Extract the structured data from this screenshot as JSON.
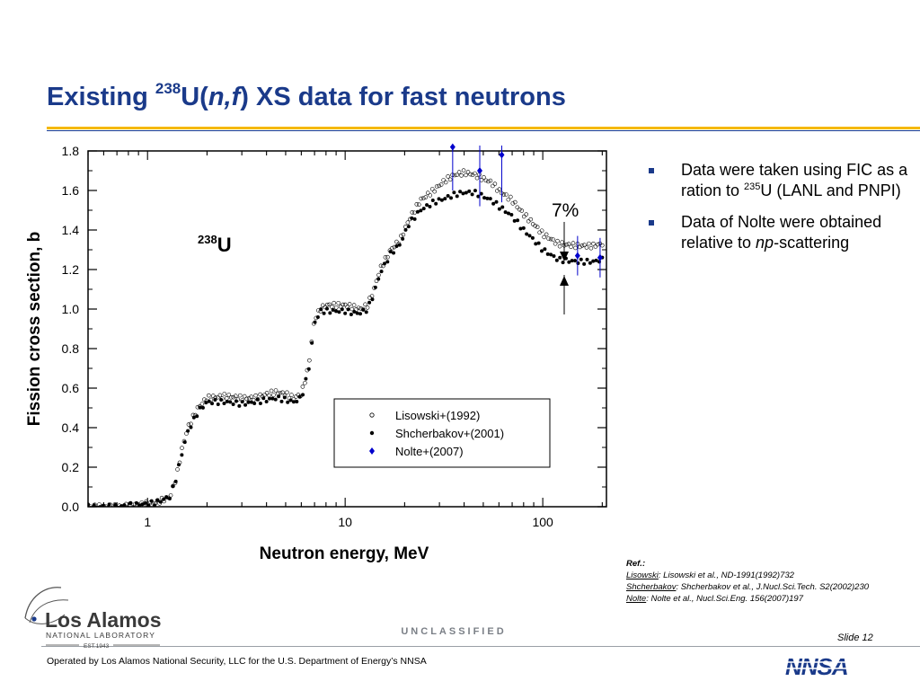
{
  "title": {
    "prefix": "Existing ",
    "isotope_mass": "238",
    "element": "U(",
    "reaction": "n,f",
    "suffix": ") XS data for fast neutrons"
  },
  "bullets": [
    {
      "text_a": "Data were taken using FIC as a ration to ",
      "sup": "235",
      "text_b": "U (LANL and PNPI)"
    },
    {
      "text_a": "Data of Nolte were obtained relative to ",
      "italic": "np",
      "text_b": "-scattering"
    }
  ],
  "references": {
    "heading": "Ref.:",
    "items": [
      {
        "name": "Lisowski",
        "text": ": Lisowski et al., ND-1991(1992)732"
      },
      {
        "name": "Shcherbakov",
        "text": ": Shcherbakov et al., J.Nucl.Sci.Tech. S2(2002)230"
      },
      {
        "name": "Nolte",
        "text": ": Nolte et al., Nucl.Sci.Eng. 156(2007)197"
      }
    ]
  },
  "classification": "UNCLASSIFIED",
  "slide_number": "Slide 12",
  "footer": "Operated by Los Alamos National Security, LLC for the U.S. Department of Energy’s NNSA",
  "logos": {
    "lanl_main": "Los Alamos",
    "lanl_sub": "NATIONAL LABORATORY",
    "lanl_est": "EST.1943",
    "nnsa": "NNSA"
  },
  "colors": {
    "title": "#1a3a8a",
    "rule": "#f5b800",
    "nolte": "#0000cc",
    "nnsa": "#1a3a8a"
  },
  "chart_data": {
    "type": "scatter",
    "xlabel": "Neutron energy, MeV",
    "ylabel": "Fission cross section, b",
    "x_scale": "log",
    "xlim": [
      0.5,
      210
    ],
    "ylim": [
      0,
      1.8
    ],
    "x_ticks": [
      1,
      10,
      100
    ],
    "y_ticks": [
      0.0,
      0.2,
      0.4,
      0.6,
      0.8,
      1.0,
      1.2,
      1.4,
      1.6,
      1.8
    ],
    "y_tick_labels": [
      "0.0",
      "0.2",
      "0.4",
      "0.6",
      "0.8",
      "1.0",
      "1.2",
      "1.4",
      "1.6",
      "1.8"
    ],
    "annotation_nuclide": {
      "sup": "238",
      "text": "U"
    },
    "annotation_percent": "7%",
    "legend_position": "lower-right",
    "series": [
      {
        "name": "Lisowski+(1992)",
        "marker": "open-circle",
        "points": [
          [
            0.5,
            0.0
          ],
          [
            0.7,
            0.0
          ],
          [
            0.9,
            0.01
          ],
          [
            1.1,
            0.02
          ],
          [
            1.3,
            0.05
          ],
          [
            1.4,
            0.15
          ],
          [
            1.5,
            0.3
          ],
          [
            1.6,
            0.4
          ],
          [
            1.8,
            0.5
          ],
          [
            2.0,
            0.55
          ],
          [
            2.5,
            0.56
          ],
          [
            3.0,
            0.55
          ],
          [
            3.5,
            0.55
          ],
          [
            4.0,
            0.57
          ],
          [
            4.5,
            0.58
          ],
          [
            5.0,
            0.57
          ],
          [
            5.5,
            0.55
          ],
          [
            6.0,
            0.57
          ],
          [
            6.5,
            0.7
          ],
          [
            6.8,
            0.85
          ],
          [
            7.0,
            0.95
          ],
          [
            7.5,
            1.0
          ],
          [
            8.0,
            1.02
          ],
          [
            9.0,
            1.02
          ],
          [
            10,
            1.02
          ],
          [
            11,
            1.01
          ],
          [
            12,
            1.0
          ],
          [
            13,
            1.02
          ],
          [
            14,
            1.1
          ],
          [
            15,
            1.2
          ],
          [
            17,
            1.3
          ],
          [
            19,
            1.35
          ],
          [
            21,
            1.45
          ],
          [
            24,
            1.55
          ],
          [
            28,
            1.6
          ],
          [
            32,
            1.65
          ],
          [
            36,
            1.68
          ],
          [
            40,
            1.69
          ],
          [
            45,
            1.68
          ],
          [
            50,
            1.66
          ],
          [
            55,
            1.64
          ],
          [
            60,
            1.6
          ],
          [
            70,
            1.55
          ],
          [
            80,
            1.48
          ],
          [
            90,
            1.43
          ],
          [
            100,
            1.38
          ],
          [
            120,
            1.33
          ],
          [
            150,
            1.32
          ],
          [
            180,
            1.32
          ],
          [
            200,
            1.33
          ]
        ]
      },
      {
        "name": "Shcherbakov+(2001)",
        "marker": "filled-circle",
        "points": [
          [
            0.5,
            0.0
          ],
          [
            0.7,
            0.0
          ],
          [
            0.9,
            0.01
          ],
          [
            1.1,
            0.02
          ],
          [
            1.3,
            0.05
          ],
          [
            1.4,
            0.15
          ],
          [
            1.5,
            0.28
          ],
          [
            1.6,
            0.38
          ],
          [
            1.8,
            0.48
          ],
          [
            2.0,
            0.53
          ],
          [
            2.5,
            0.53
          ],
          [
            3.0,
            0.52
          ],
          [
            3.5,
            0.53
          ],
          [
            4.0,
            0.54
          ],
          [
            4.5,
            0.55
          ],
          [
            5.0,
            0.54
          ],
          [
            5.5,
            0.53
          ],
          [
            6.0,
            0.55
          ],
          [
            6.5,
            0.68
          ],
          [
            6.8,
            0.83
          ],
          [
            7.0,
            0.93
          ],
          [
            7.5,
            0.99
          ],
          [
            8.0,
            0.99
          ],
          [
            9.0,
            0.99
          ],
          [
            10,
            0.99
          ],
          [
            11,
            0.98
          ],
          [
            12,
            0.98
          ],
          [
            13,
            1.0
          ],
          [
            14,
            1.08
          ],
          [
            15,
            1.18
          ],
          [
            17,
            1.28
          ],
          [
            19,
            1.33
          ],
          [
            21,
            1.43
          ],
          [
            24,
            1.5
          ],
          [
            28,
            1.54
          ],
          [
            32,
            1.56
          ],
          [
            36,
            1.58
          ],
          [
            40,
            1.59
          ],
          [
            45,
            1.59
          ],
          [
            50,
            1.57
          ],
          [
            55,
            1.55
          ],
          [
            60,
            1.52
          ],
          [
            70,
            1.47
          ],
          [
            80,
            1.4
          ],
          [
            90,
            1.35
          ],
          [
            100,
            1.3
          ],
          [
            120,
            1.25
          ],
          [
            150,
            1.24
          ],
          [
            180,
            1.24
          ],
          [
            200,
            1.25
          ]
        ]
      },
      {
        "name": "Nolte+(2007)",
        "marker": "diamond",
        "points": [
          {
            "x": 35,
            "y": 1.82,
            "err": 0.22
          },
          {
            "x": 48,
            "y": 1.7,
            "err": 0.18
          },
          {
            "x": 62,
            "y": 1.78,
            "err": 0.24
          },
          {
            "x": 150,
            "y": 1.27,
            "err": 0.1
          },
          {
            "x": 195,
            "y": 1.26,
            "err": 0.1
          }
        ]
      }
    ]
  }
}
